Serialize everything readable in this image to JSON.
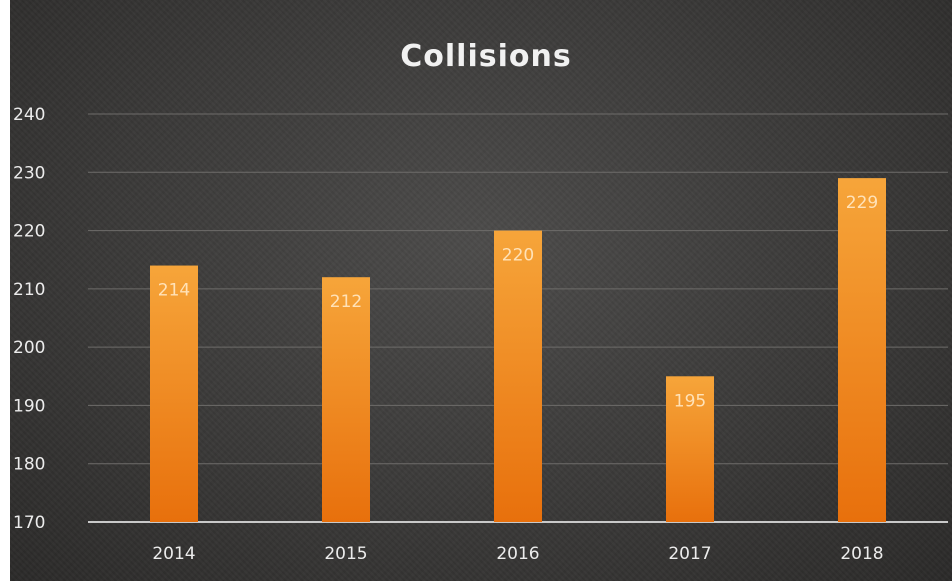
{
  "chart_data": {
    "type": "bar",
    "title": "Collisions",
    "categories": [
      "2014",
      "2015",
      "2016",
      "2017",
      "2018"
    ],
    "values": [
      214,
      212,
      220,
      195,
      229
    ],
    "data_labels": [
      "214",
      "212",
      "220",
      "195",
      "229"
    ],
    "ylim": [
      170,
      240
    ],
    "yticks": [
      "170",
      "180",
      "190",
      "200",
      "210",
      "220",
      "230",
      "240"
    ],
    "xlabel": "",
    "ylabel": "",
    "grid": true,
    "legend": "none",
    "colors": {
      "bar_top": "#f6a53a",
      "bar_bottom": "#e8700c",
      "gridline": "#6e6c6a",
      "axis": "#c9c9c9"
    }
  }
}
